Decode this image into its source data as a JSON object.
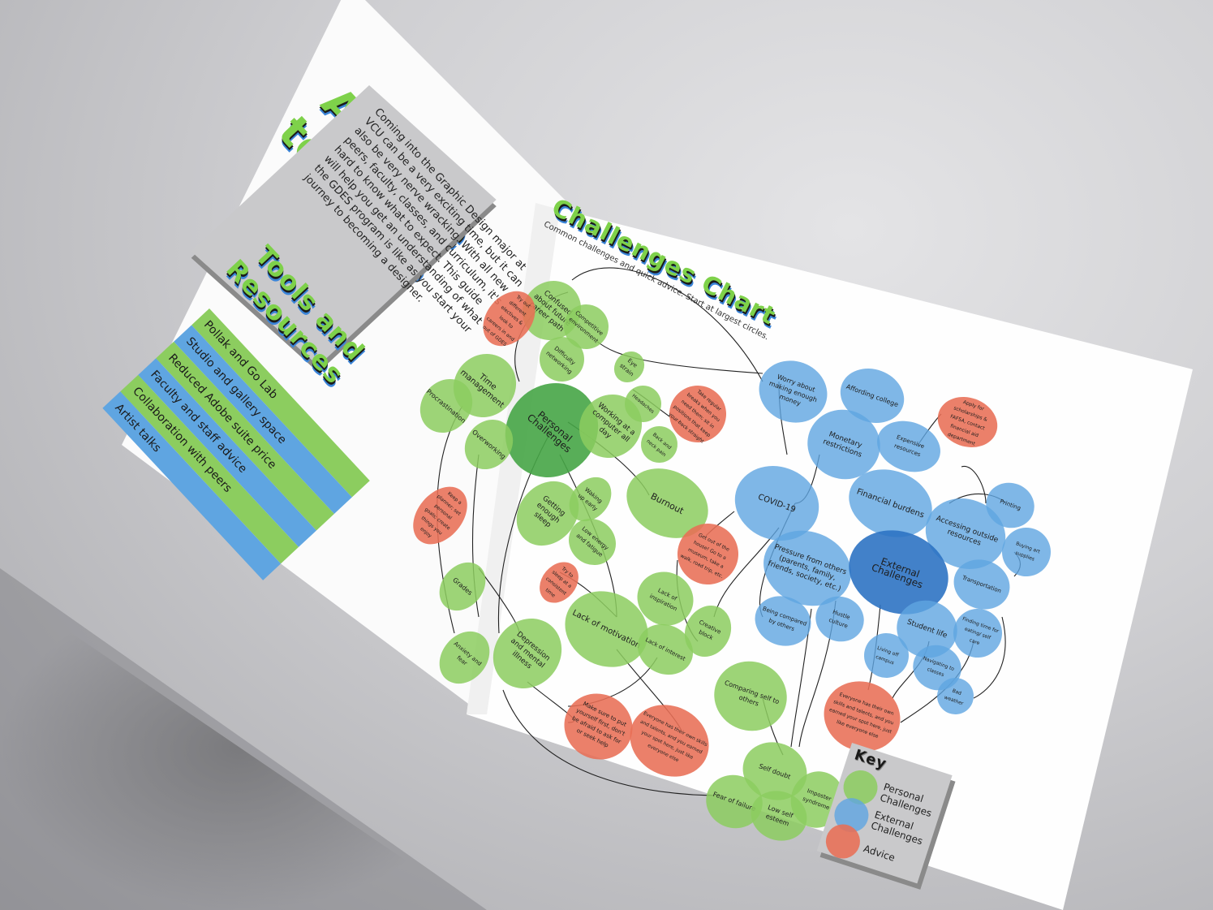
{
  "colors": {
    "personal": "#8ccd5f",
    "external": "#5fa5e1",
    "advice": "#e86e55",
    "title_green": "#7ed14a",
    "title_blue": "#3a84d8",
    "box_gray": "#c9c9cb"
  },
  "left_page": {
    "title_line1": "A Guide",
    "title_line2": "to GDES",
    "intro": "Coming into the Graphic Design major at VCU can be a very exciting time, but it can also be very nerve wracking. With all new peers, faculty, classes, and curriculum, it's hard to know what to expect. This guide will help you get an understanding of what the GDES program is like as you start your journey to becoming a designer.",
    "tools_title_line1": "Tools and",
    "tools_title_line2": "Resources",
    "tools": [
      {
        "label": "Pollak and Go Lab",
        "color": "green"
      },
      {
        "label": "Studio and gallery space",
        "color": "blue"
      },
      {
        "label": "Reduced Adobe suite price",
        "color": "green"
      },
      {
        "label": "Faculty and staff advice",
        "color": "blue"
      },
      {
        "label": "Collaboration with peers",
        "color": "green"
      },
      {
        "label": "Artist talks",
        "color": "blue"
      }
    ]
  },
  "right_page": {
    "chart_title": "Challenges Chart",
    "chart_subtitle": "Common challenges and quick advice. Start at largest circles.",
    "bubbles": {
      "personal_challenges": "Personal Challenges",
      "time_management": "Time management",
      "procrastination": "Procrastination",
      "overworking": "Overworking",
      "confused_career": "Confused about future career path",
      "competitive_environment": "Competitive environment",
      "difficulty_networking": "Difficulty networking",
      "try_out_electives": "Try out different electives & look to careers in and out of GDES",
      "eye_strain": "Eye strain",
      "headaches": "Headaches",
      "back_neck_pain": "Back and neck pain",
      "working_computer": "Working at a computer all day",
      "take_breaks": "Take regular breaks when you need them; sit in positions that keep your back straight",
      "burnout": "Burnout",
      "getting_sleep": "Getting enough sleep",
      "waking_up_early": "Waking up early",
      "low_energy": "Low energy and fatigue",
      "sleep_consistent": "Try to sleep at a consistent time",
      "keep_planner": "Keep a planner; set personal goals; create things you enjoy",
      "get_out_house": "Get out of the house! Go to a museum, take a walk, road trip, etc.",
      "grades": "Grades",
      "lack_motivation": "Lack of motivation",
      "lack_inspiration": "Lack of inspiration",
      "lack_interest": "Lack of interest",
      "creative_block": "Creative block",
      "anxiety_fear": "Anxiety and fear",
      "depression": "Depression and mental illness",
      "put_yourself_first": "Make sure to put yourself first, don't be afraid to ask for or seek help",
      "everyone_skills_left": "Everyone has their own skills and talents, and you earned your spot here, just like everyone else",
      "comparing_self": "Comparing self to others",
      "self_doubt": "Self doubt",
      "fear_failure": "Fear of failure",
      "low_self_esteem": "Low self esteem",
      "imposter_syndrome": "Imposter syndrome",
      "worry_money": "Worry about making enough money",
      "affording_college": "Affording college",
      "monetary_restrictions": "Monetary restrictions",
      "expensive_resources": "Expensive resources",
      "apply_scholarships": "Apply for scholarships & FAFSA, contact financial aid department",
      "covid": "COVID-19",
      "financial_burdens": "Financial burdens",
      "accessing_resources": "Accessing outside resources",
      "printing": "Printing",
      "buying_supplies": "Buying art supplies",
      "pressure_others": "Pressure from others (parents, family, friends, society, etc.)",
      "external_challenges": "External Challenges",
      "transportation": "Transportation",
      "being_compared": "Being compared by others",
      "hustle_culture": "Hustle culture",
      "student_life": "Student life",
      "finding_time": "Finding time for eating/ self care",
      "living_off_campus": "Living off campus",
      "navigating_classes": "Navigating to classes",
      "bad_weather": "Bad weather",
      "everyone_skills_right": "Everyone has their own skills and talents, and you earned your spot here, just like everyone else"
    },
    "key": {
      "title": "Key",
      "personal": "Personal Challenges",
      "external": "External Challenges",
      "advice": "Advice"
    }
  }
}
